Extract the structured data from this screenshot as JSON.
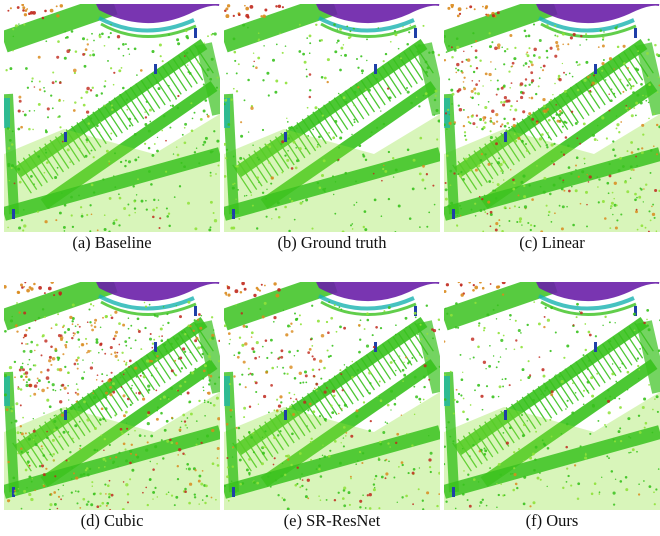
{
  "figure": {
    "panels": [
      {
        "id": "a",
        "caption": "(a)  Baseline"
      },
      {
        "id": "b",
        "caption": "(b)  Ground truth"
      },
      {
        "id": "c",
        "caption": "(c)  Linear"
      },
      {
        "id": "d",
        "caption": "(d)  Cubic"
      },
      {
        "id": "e",
        "caption": "(e)  SR-ResNet"
      },
      {
        "id": "f",
        "caption": "(f)  Ours"
      }
    ],
    "colors": {
      "ground": "#39c21e",
      "ground_light": "#8fe23a",
      "wall_purple": "#6a1fa8",
      "wall_blue": "#2a3fd0",
      "cyan": "#18b3b0",
      "orange": "#d98a1c",
      "red": "#c0281c",
      "pole_blue": "#1f3fa8"
    }
  }
}
